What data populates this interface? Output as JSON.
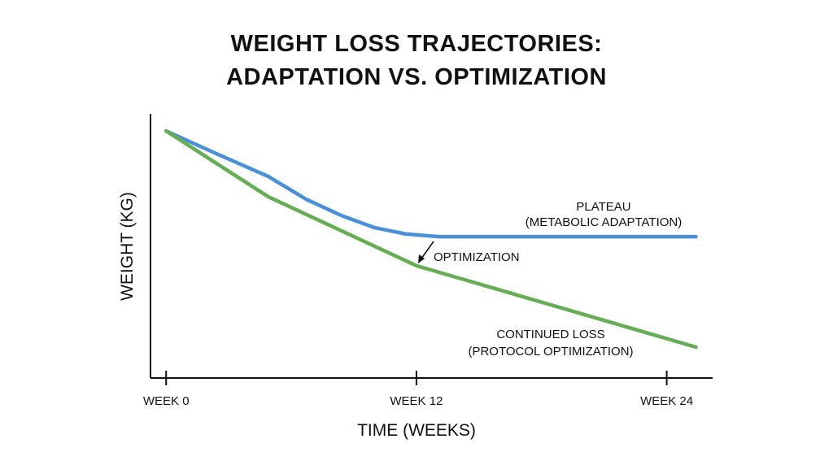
{
  "chart_data": {
    "type": "line",
    "title": [
      "WEIGHT LOSS TRAJECTORIES:",
      "ADAPTATION VS. OPTIMIZATION"
    ],
    "xlabel": "TIME (WEEKS)",
    "ylabel": "WEIGHT (KG)",
    "x_ticks": [
      {
        "value": 0,
        "label": "WEEK 0"
      },
      {
        "value": 12,
        "label": "WEEK 12"
      },
      {
        "value": 24,
        "label": "WEEK 24"
      }
    ],
    "xlim": [
      -0.75,
      26.2
    ],
    "ylim": [
      0,
      100
    ],
    "y_ticks_shown": false,
    "grid": false,
    "series": [
      {
        "key": "plateau",
        "color": "#4a90d9",
        "x": [
          0,
          2.5,
          4.9,
          6.7,
          8.4,
          10,
          11.5,
          13.1,
          25.4
        ],
        "y": [
          93.5,
          84.6,
          76.3,
          67.7,
          61.5,
          56.9,
          54.5,
          53.5,
          53.5
        ]
      },
      {
        "key": "continued",
        "color": "#66ad55",
        "x": [
          0,
          4.9,
          12,
          25.4
        ],
        "y": [
          93.5,
          68.6,
          42.5,
          11.7
        ]
      }
    ],
    "annotations": {
      "plateau": [
        "PLATEAU",
        "(METABOLIC ADAPTATION)"
      ],
      "optimization": "OPTIMIZATION",
      "continued": [
        "CONTINUED LOSS",
        "(PROTOCOL OPTIMIZATION)"
      ]
    }
  }
}
